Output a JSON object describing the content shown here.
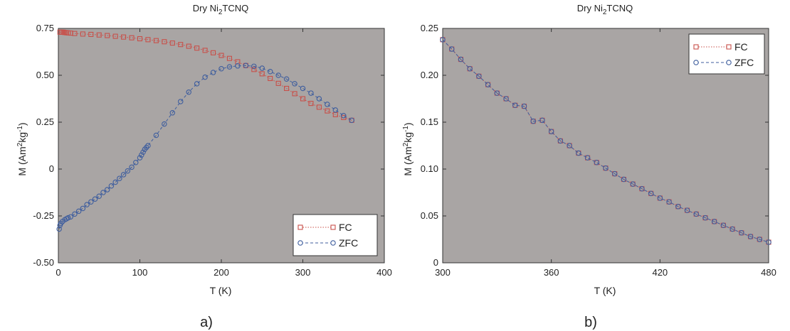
{
  "chart_data": [
    {
      "type": "scatter",
      "title": "Dry Ni",
      "title_sub": "2",
      "title_rest": "TCNQ",
      "xlabel": "T (K)",
      "ylabel_parts": [
        "M (Am",
        "2",
        "kg",
        "-1",
        ")"
      ],
      "xlim": [
        0,
        400
      ],
      "ylim": [
        -0.5,
        0.75
      ],
      "xticks": [
        "0",
        "100",
        "200",
        "300",
        "400"
      ],
      "yticks": [
        "-0.50",
        "-0.25",
        "0",
        "0.25",
        "0.50",
        "0.75"
      ],
      "xtick_values": [
        0,
        100,
        200,
        300,
        400
      ],
      "ytick_values": [
        -0.5,
        -0.25,
        0,
        0.25,
        0.5,
        0.75
      ],
      "panel_label": "a)",
      "legend_placement": "bottom-right",
      "grid": false,
      "background": "#a9a5a4",
      "series": [
        {
          "name": "FC",
          "color": "#c8504a",
          "marker": "square",
          "line": "dotted",
          "x": [
            2,
            4,
            6,
            8,
            10,
            12,
            15,
            20,
            30,
            40,
            50,
            60,
            70,
            80,
            90,
            100,
            110,
            120,
            130,
            140,
            150,
            160,
            170,
            180,
            190,
            200,
            210,
            220,
            230,
            240,
            250,
            260,
            270,
            280,
            290,
            300,
            310,
            320,
            330,
            340,
            350,
            360
          ],
          "y": [
            0.73,
            0.73,
            0.73,
            0.728,
            0.727,
            0.726,
            0.725,
            0.723,
            0.72,
            0.718,
            0.715,
            0.712,
            0.708,
            0.704,
            0.7,
            0.695,
            0.69,
            0.685,
            0.679,
            0.672,
            0.664,
            0.655,
            0.645,
            0.633,
            0.62,
            0.606,
            0.59,
            0.572,
            0.552,
            0.531,
            0.508,
            0.483,
            0.457,
            0.43,
            0.402,
            0.375,
            0.35,
            0.33,
            0.31,
            0.29,
            0.275,
            0.26
          ]
        },
        {
          "name": "ZFC",
          "color": "#3f5e9e",
          "marker": "circle",
          "line": "dashed",
          "x": [
            1,
            2,
            3,
            5,
            8,
            10,
            12,
            15,
            20,
            25,
            30,
            35,
            40,
            45,
            50,
            55,
            60,
            65,
            70,
            75,
            80,
            85,
            90,
            95,
            100,
            102,
            104,
            106,
            108,
            110,
            120,
            130,
            140,
            150,
            160,
            170,
            180,
            190,
            200,
            210,
            220,
            230,
            240,
            250,
            260,
            270,
            280,
            290,
            300,
            310,
            320,
            330,
            340,
            350,
            360
          ],
          "y": [
            -0.32,
            -0.3,
            -0.29,
            -0.28,
            -0.27,
            -0.265,
            -0.26,
            -0.255,
            -0.24,
            -0.225,
            -0.21,
            -0.19,
            -0.175,
            -0.16,
            -0.145,
            -0.125,
            -0.11,
            -0.09,
            -0.07,
            -0.05,
            -0.03,
            -0.01,
            0.01,
            0.035,
            0.06,
            0.075,
            0.09,
            0.105,
            0.115,
            0.125,
            0.18,
            0.24,
            0.3,
            0.36,
            0.41,
            0.455,
            0.49,
            0.515,
            0.535,
            0.545,
            0.55,
            0.552,
            0.548,
            0.538,
            0.52,
            0.5,
            0.48,
            0.455,
            0.43,
            0.405,
            0.375,
            0.345,
            0.315,
            0.285,
            0.26
          ]
        }
      ]
    },
    {
      "type": "scatter",
      "title": "Dry Ni",
      "title_sub": "2",
      "title_rest": "TCNQ",
      "xlabel": "T (K)",
      "ylabel_parts": [
        "M (Am",
        "2",
        "kg",
        "-1",
        ")"
      ],
      "xlim": [
        300,
        480
      ],
      "ylim": [
        0,
        0.25
      ],
      "xticks": [
        "300",
        "360",
        "420",
        "480"
      ],
      "yticks": [
        "0",
        "0.05",
        "0.10",
        "0.15",
        "0.20",
        "0.25"
      ],
      "xtick_values": [
        300,
        360,
        420,
        480
      ],
      "ytick_values": [
        0,
        0.05,
        0.1,
        0.15,
        0.2,
        0.25
      ],
      "panel_label": "b)",
      "legend_placement": "top-right",
      "grid": false,
      "background": "#a9a5a4",
      "series": [
        {
          "name": "FC",
          "color": "#c8504a",
          "marker": "square",
          "line": "dotted",
          "x": [
            300,
            305,
            310,
            315,
            320,
            325,
            330,
            335,
            340,
            345,
            350,
            355,
            360,
            365,
            370,
            375,
            380,
            385,
            390,
            395,
            400,
            405,
            410,
            415,
            420,
            425,
            430,
            435,
            440,
            445,
            450,
            455,
            460,
            465,
            470,
            475,
            480
          ],
          "y": [
            0.238,
            0.228,
            0.217,
            0.207,
            0.199,
            0.19,
            0.181,
            0.175,
            0.168,
            0.167,
            0.151,
            0.152,
            0.14,
            0.13,
            0.125,
            0.117,
            0.112,
            0.107,
            0.101,
            0.095,
            0.089,
            0.084,
            0.079,
            0.074,
            0.069,
            0.065,
            0.06,
            0.056,
            0.052,
            0.048,
            0.044,
            0.04,
            0.036,
            0.032,
            0.028,
            0.025,
            0.022
          ]
        },
        {
          "name": "ZFC",
          "color": "#3f5e9e",
          "marker": "circle",
          "line": "dashed",
          "x": [
            300,
            305,
            310,
            315,
            320,
            325,
            330,
            335,
            340,
            345,
            350,
            355,
            360,
            365,
            370,
            375,
            380,
            385,
            390,
            395,
            400,
            405,
            410,
            415,
            420,
            425,
            430,
            435,
            440,
            445,
            450,
            455,
            460,
            465,
            470,
            475,
            480
          ],
          "y": [
            0.238,
            0.228,
            0.217,
            0.207,
            0.199,
            0.19,
            0.181,
            0.175,
            0.168,
            0.167,
            0.151,
            0.152,
            0.14,
            0.13,
            0.125,
            0.117,
            0.112,
            0.107,
            0.101,
            0.095,
            0.089,
            0.084,
            0.079,
            0.074,
            0.069,
            0.065,
            0.06,
            0.056,
            0.052,
            0.048,
            0.044,
            0.04,
            0.036,
            0.032,
            0.028,
            0.025,
            0.022
          ]
        }
      ]
    }
  ]
}
